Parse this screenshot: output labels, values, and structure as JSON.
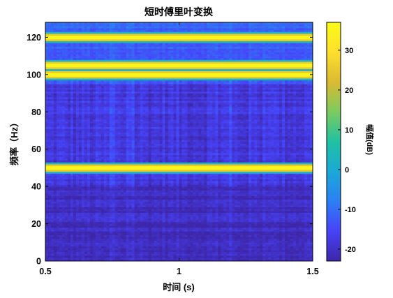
{
  "chart_data": {
    "type": "heatmap",
    "title": "短时傅里叶变换",
    "xlabel": "时间 (s)",
    "ylabel": "频率（Hz）",
    "xlim": [
      0.5,
      1.5
    ],
    "ylim": [
      0,
      128
    ],
    "x_ticks": [
      0.5,
      1,
      1.5
    ],
    "x_tick_labels": [
      "0.5",
      "1",
      "1.5"
    ],
    "y_ticks": [
      0,
      20,
      40,
      60,
      80,
      100,
      120
    ],
    "y_tick_labels": [
      "0",
      "20",
      "40",
      "60",
      "80",
      "100",
      "120"
    ],
    "colorbar": {
      "label": "幅值(dB)",
      "colormap": "parula",
      "limits": [
        -23,
        37
      ],
      "ticks": [
        -20,
        -10,
        0,
        10,
        20,
        30
      ],
      "tick_labels": [
        "-20",
        "-10",
        "0",
        "10",
        "20",
        "30"
      ]
    },
    "dominant_frequency_bands_hz": [
      50,
      100,
      105,
      120
    ],
    "band_peak_db": 37,
    "background_db": {
      "below_40hz": -21,
      "between_40_and_95hz": -18,
      "above_95hz": -12
    },
    "colormap_stops": [
      "#3e26a8",
      "#4743f8",
      "#2c80f5",
      "#1ba9d7",
      "#20c1a2",
      "#7ccb5f",
      "#dbba30",
      "#fedf2d",
      "#f9fb15"
    ]
  }
}
